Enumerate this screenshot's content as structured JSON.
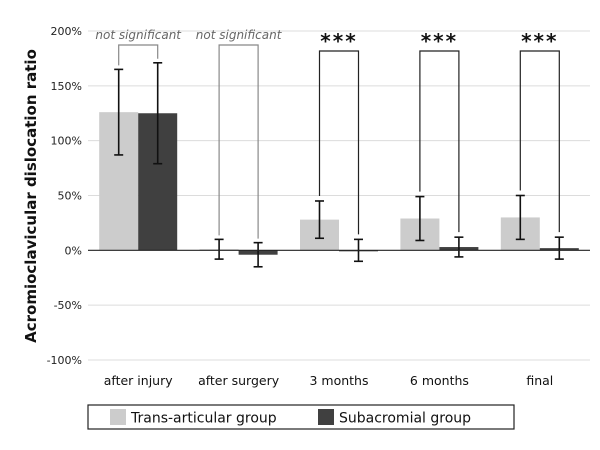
{
  "chart_data": {
    "type": "bar",
    "ylabel": "Acromioclavicular dislocation ratio",
    "xlabel": "",
    "ylim": [
      -100,
      200
    ],
    "ytick_step": 50,
    "ytick_labels": [
      "-100%",
      "-50%",
      "0%",
      "50%",
      "100%",
      "150%",
      "200%"
    ],
    "grid": true,
    "categories": [
      "after injury",
      "after surgery",
      "3 months",
      "6 months",
      "final"
    ],
    "series": [
      {
        "name": "Trans-articular group",
        "color": "#cccccc",
        "values": [
          126,
          1,
          28,
          29,
          30
        ],
        "error": [
          39,
          9,
          17,
          20,
          20
        ]
      },
      {
        "name": "Subacromial group",
        "color": "#404040",
        "values": [
          125,
          -4,
          0,
          3,
          2
        ],
        "error": [
          46,
          11,
          10,
          9,
          10
        ]
      }
    ],
    "significance": [
      {
        "category": 0,
        "label": "not significant",
        "style": "text"
      },
      {
        "category": 1,
        "label": "not significant",
        "style": "text"
      },
      {
        "category": 2,
        "label": "***",
        "style": "stars"
      },
      {
        "category": 3,
        "label": "***",
        "style": "stars"
      },
      {
        "category": 4,
        "label": "***",
        "style": "stars"
      }
    ],
    "legend": {
      "position": "bottom",
      "items": [
        "Trans-articular group",
        "Subacromial group"
      ]
    }
  }
}
